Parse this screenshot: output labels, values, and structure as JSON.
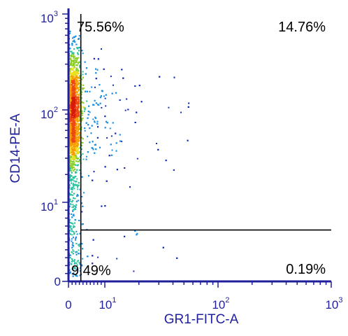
{
  "chart_data": {
    "type": "scatter",
    "plot_style": "flow-cytometry-density-dot-plot",
    "xlabel": "GR1-FITC-A",
    "ylabel": "CD14-PE-A",
    "x_scale": "biexponential",
    "y_scale": "biexponential",
    "xlim": [
      0,
      1000
    ],
    "ylim": [
      0,
      1000
    ],
    "x_ticks": [
      {
        "value": 0,
        "base": "0",
        "exp": ""
      },
      {
        "value": 10,
        "base": "10",
        "exp": "1"
      },
      {
        "value": 100,
        "base": "10",
        "exp": "2"
      },
      {
        "value": 1000,
        "base": "10",
        "exp": "3"
      }
    ],
    "y_ticks": [
      {
        "value": 0,
        "base": "0",
        "exp": ""
      },
      {
        "value": 10,
        "base": "10",
        "exp": "1"
      },
      {
        "value": 100,
        "base": "10",
        "exp": "2"
      },
      {
        "value": 1000,
        "base": "10",
        "exp": "3"
      }
    ],
    "quadrant_gate": {
      "x": 3.4,
      "y": 6.5
    },
    "quadrants": [
      {
        "position": "top-left",
        "label": "75.56%"
      },
      {
        "position": "top-right",
        "label": "14.76%"
      },
      {
        "position": "bottom-left",
        "label": "9.49%"
      },
      {
        "position": "bottom-right",
        "label": "0.19%"
      }
    ],
    "density_colors": [
      "#1a2fb8",
      "#1e90e0",
      "#2ec4a0",
      "#8ccf2a",
      "#e8e020",
      "#f5a000",
      "#ee4a10",
      "#d81a0a"
    ],
    "population": {
      "x_center": 1.3,
      "x_spread": 1.1,
      "y_log_center": 1.95,
      "y_log_spread": 0.33,
      "approx_events": 5000
    }
  }
}
